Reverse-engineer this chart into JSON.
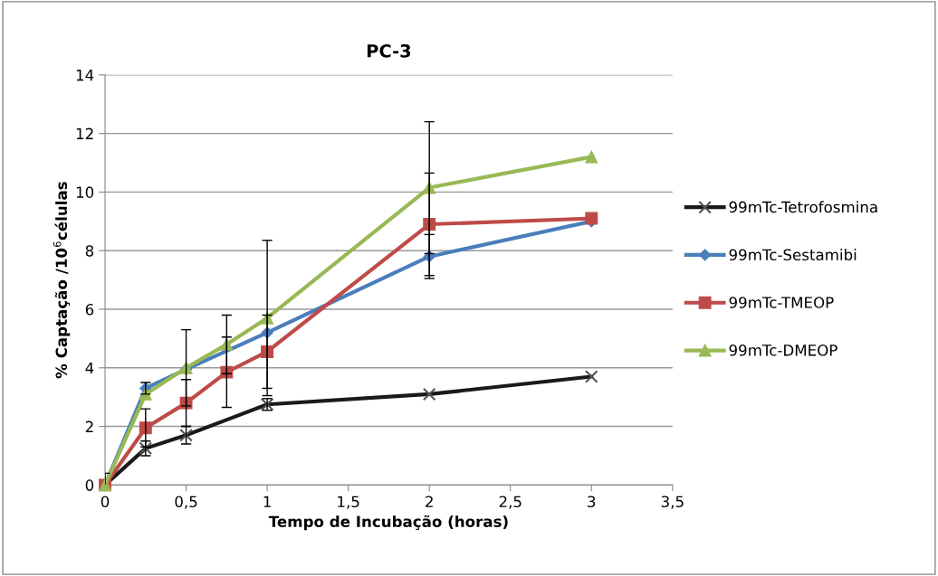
{
  "chart_data": {
    "type": "line",
    "title": "PC-3",
    "xlabel": "Tempo de Incubação (horas)",
    "ylabel": "% Captação /10$^{6}$células",
    "xlim": [
      0,
      3.5
    ],
    "ylim": [
      0,
      14
    ],
    "xticks": [
      0,
      {
        "value": 0.5,
        "label": "0,5"
      },
      1,
      {
        "value": 1.5,
        "label": "1,5"
      },
      2,
      {
        "value": 2.5,
        "label": "2,5"
      },
      3,
      {
        "value": 3.5,
        "label": "3,5"
      }
    ],
    "yticks": [
      0,
      2,
      4,
      6,
      8,
      10,
      12,
      14
    ],
    "grid": "y",
    "legend": "right",
    "series": [
      {
        "name": "99mTc-Tetrofosmina",
        "color": "#1a1a1a",
        "marker": "cross",
        "x": [
          0,
          0.25,
          0.5,
          1,
          2,
          3
        ],
        "values": [
          0,
          1.25,
          1.7,
          2.75,
          3.1,
          3.7
        ],
        "errors": [
          0.4,
          0.25,
          0.3,
          0.2,
          null,
          null
        ]
      },
      {
        "name": "99mTc-Sestamibi",
        "color": "#4a7ebb",
        "marker": "diamond",
        "x": [
          0,
          0.25,
          0.5,
          1,
          2,
          3
        ],
        "values": [
          0,
          3.3,
          3.95,
          5.2,
          7.8,
          9.0
        ],
        "errors": [
          null,
          0.2,
          null,
          null,
          0.75,
          null
        ]
      },
      {
        "name": "99mTc-TMEOP",
        "color": "#be4b48",
        "marker": "square",
        "x": [
          0,
          0.25,
          0.5,
          0.75,
          1,
          2,
          3
        ],
        "values": [
          0,
          1.95,
          2.8,
          3.85,
          4.55,
          8.9,
          9.1
        ],
        "errors": [
          null,
          0.65,
          0.8,
          1.2,
          1.25,
          1.75,
          null
        ]
      },
      {
        "name": "99mTc-DMEOP",
        "color": "#98b954",
        "marker": "triangle",
        "x": [
          0,
          0.25,
          0.5,
          0.75,
          1,
          2,
          3
        ],
        "values": [
          0,
          3.1,
          4.0,
          4.8,
          5.7,
          10.15,
          11.2
        ],
        "errors": [
          null,
          null,
          1.3,
          1.0,
          2.65,
          2.25,
          null
        ]
      }
    ]
  }
}
